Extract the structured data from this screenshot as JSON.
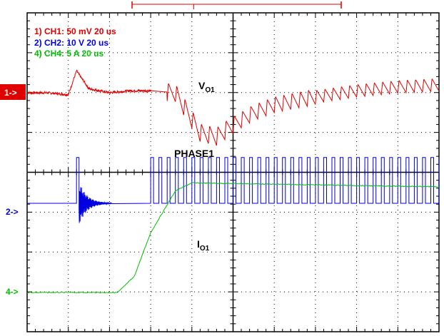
{
  "chart_data": {
    "type": "line",
    "title": "",
    "channels": [
      {
        "id": "1",
        "label": "1) CH1:  50 mV   20 us",
        "marker": "1->",
        "color": "#e00000"
      },
      {
        "id": "2",
        "label": "2) CH2:  10  V   20 us",
        "marker": "2->",
        "color": "#0000e0"
      },
      {
        "id": "4",
        "label": "4) CH4:  5  A   20 us",
        "marker": "4->",
        "color": "#00c000"
      }
    ],
    "annotations": {
      "vo1_main": "V",
      "vo1_sub": "O1",
      "phase1": "PHASE1",
      "io1_main": "I",
      "io1_sub": "O1"
    },
    "time_div_us": 20,
    "divisions_x": 10,
    "divisions_y": 8,
    "x_range_div": [
      0,
      10
    ],
    "grid": true,
    "trigger_marker": "T",
    "series": [
      {
        "name": "CH1",
        "note": "output voltage ripple, values in divisions above the CH1 ground marker",
        "x": [
          0,
          0.5,
          1.0,
          1.2,
          1.5,
          2.0,
          2.5,
          3.0,
          3.6,
          4.2,
          4.6,
          5.0,
          5.5,
          6.0,
          7.0,
          8.0,
          9.0,
          10.0
        ],
        "y": [
          0.0,
          0.0,
          -0.05,
          0.55,
          0.1,
          0.0,
          0.05,
          0.05,
          0.0,
          -1.0,
          -1.1,
          -0.8,
          -0.5,
          -0.3,
          -0.1,
          0.05,
          0.15,
          0.2
        ]
      },
      {
        "name": "CH2",
        "note": "PHASE1 switch node: burst ringing then continuous switching, values in divisions above CH2 marker",
        "low_level_div": 0.0,
        "high_level_div": 1.0,
        "ring_start_div": 1.2,
        "ring_end_div": 2.0,
        "switching_start_div": 3.0
      },
      {
        "name": "CH4",
        "note": "output current step, values in divisions above CH4 marker",
        "x": [
          0,
          2.2,
          2.6,
          3.0,
          3.6,
          4.0,
          10.0
        ],
        "y": [
          0.0,
          0.0,
          0.4,
          1.5,
          2.55,
          2.75,
          2.65
        ]
      }
    ]
  }
}
